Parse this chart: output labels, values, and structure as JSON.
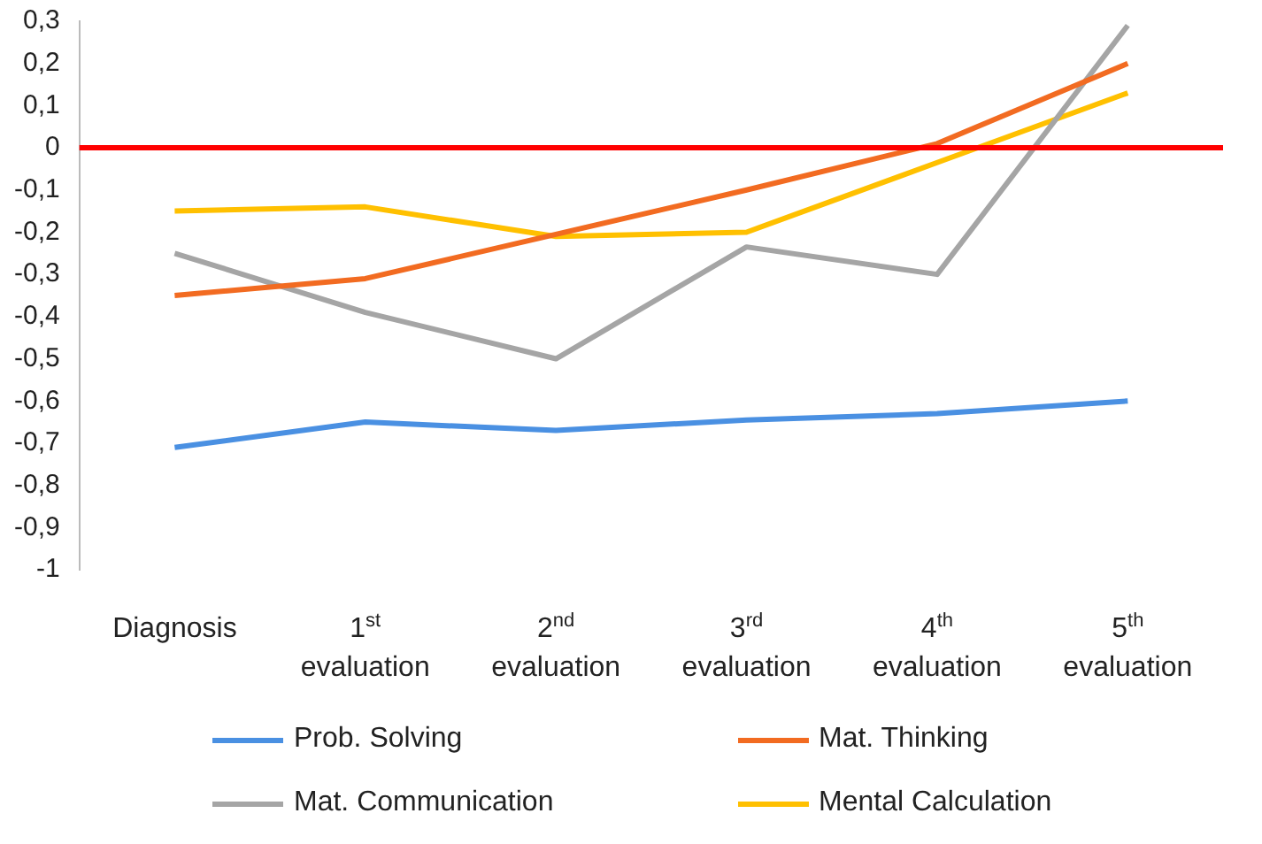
{
  "chart_data": {
    "type": "line",
    "categories": [
      "Diagnosis",
      "1$^{st}$ evaluation",
      "2$^{nd}$ evaluation",
      "3$^{rd}$ evaluation",
      "4$^{th}$ evaluation",
      "5$^{th}$ evaluation"
    ],
    "series": [
      {
        "name": "Prob. Solving",
        "color": "#4a90e2",
        "values": [
          -0.71,
          -0.65,
          -0.67,
          -0.645,
          -0.63,
          -0.6
        ]
      },
      {
        "name": "Mat. Thinking",
        "color": "#f26b21",
        "values": [
          -0.35,
          -0.31,
          -0.205,
          -0.1,
          0.01,
          0.2
        ]
      },
      {
        "name": "Mat. Communication",
        "color": "#a5a5a5",
        "values": [
          -0.25,
          -0.39,
          -0.5,
          -0.235,
          -0.3,
          0.29
        ]
      },
      {
        "name": "Mental Calculation",
        "color": "#ffc000",
        "values": [
          -0.15,
          -0.14,
          -0.21,
          -0.2,
          -0.035,
          0.13
        ]
      }
    ],
    "ylim": [
      -1,
      0.3
    ],
    "yticks": [
      {
        "value": 0.3,
        "label": "0,3"
      },
      {
        "value": 0.2,
        "label": "0,2"
      },
      {
        "value": 0.1,
        "label": "0,1"
      },
      0,
      {
        "value": -0.1,
        "label": "-0,1"
      },
      {
        "value": -0.2,
        "label": "-0,2"
      },
      {
        "value": -0.3,
        "label": "-0,3"
      },
      {
        "value": -0.4,
        "label": "-0,4"
      },
      {
        "value": -0.5,
        "label": "-0,5"
      },
      {
        "value": -0.6,
        "label": "-0,6"
      },
      {
        "value": -0.7,
        "label": "-0,7"
      },
      {
        "value": -0.8,
        "label": "-0,8"
      },
      {
        "value": -0.9,
        "label": "-0,9"
      },
      -1
    ],
    "ref_lines": [
      {
        "axis": "y",
        "value": 0,
        "color": "#ff0000"
      }
    ],
    "grid": false,
    "legend": "bottom",
    "marker": "none",
    "line_style": "solid"
  }
}
